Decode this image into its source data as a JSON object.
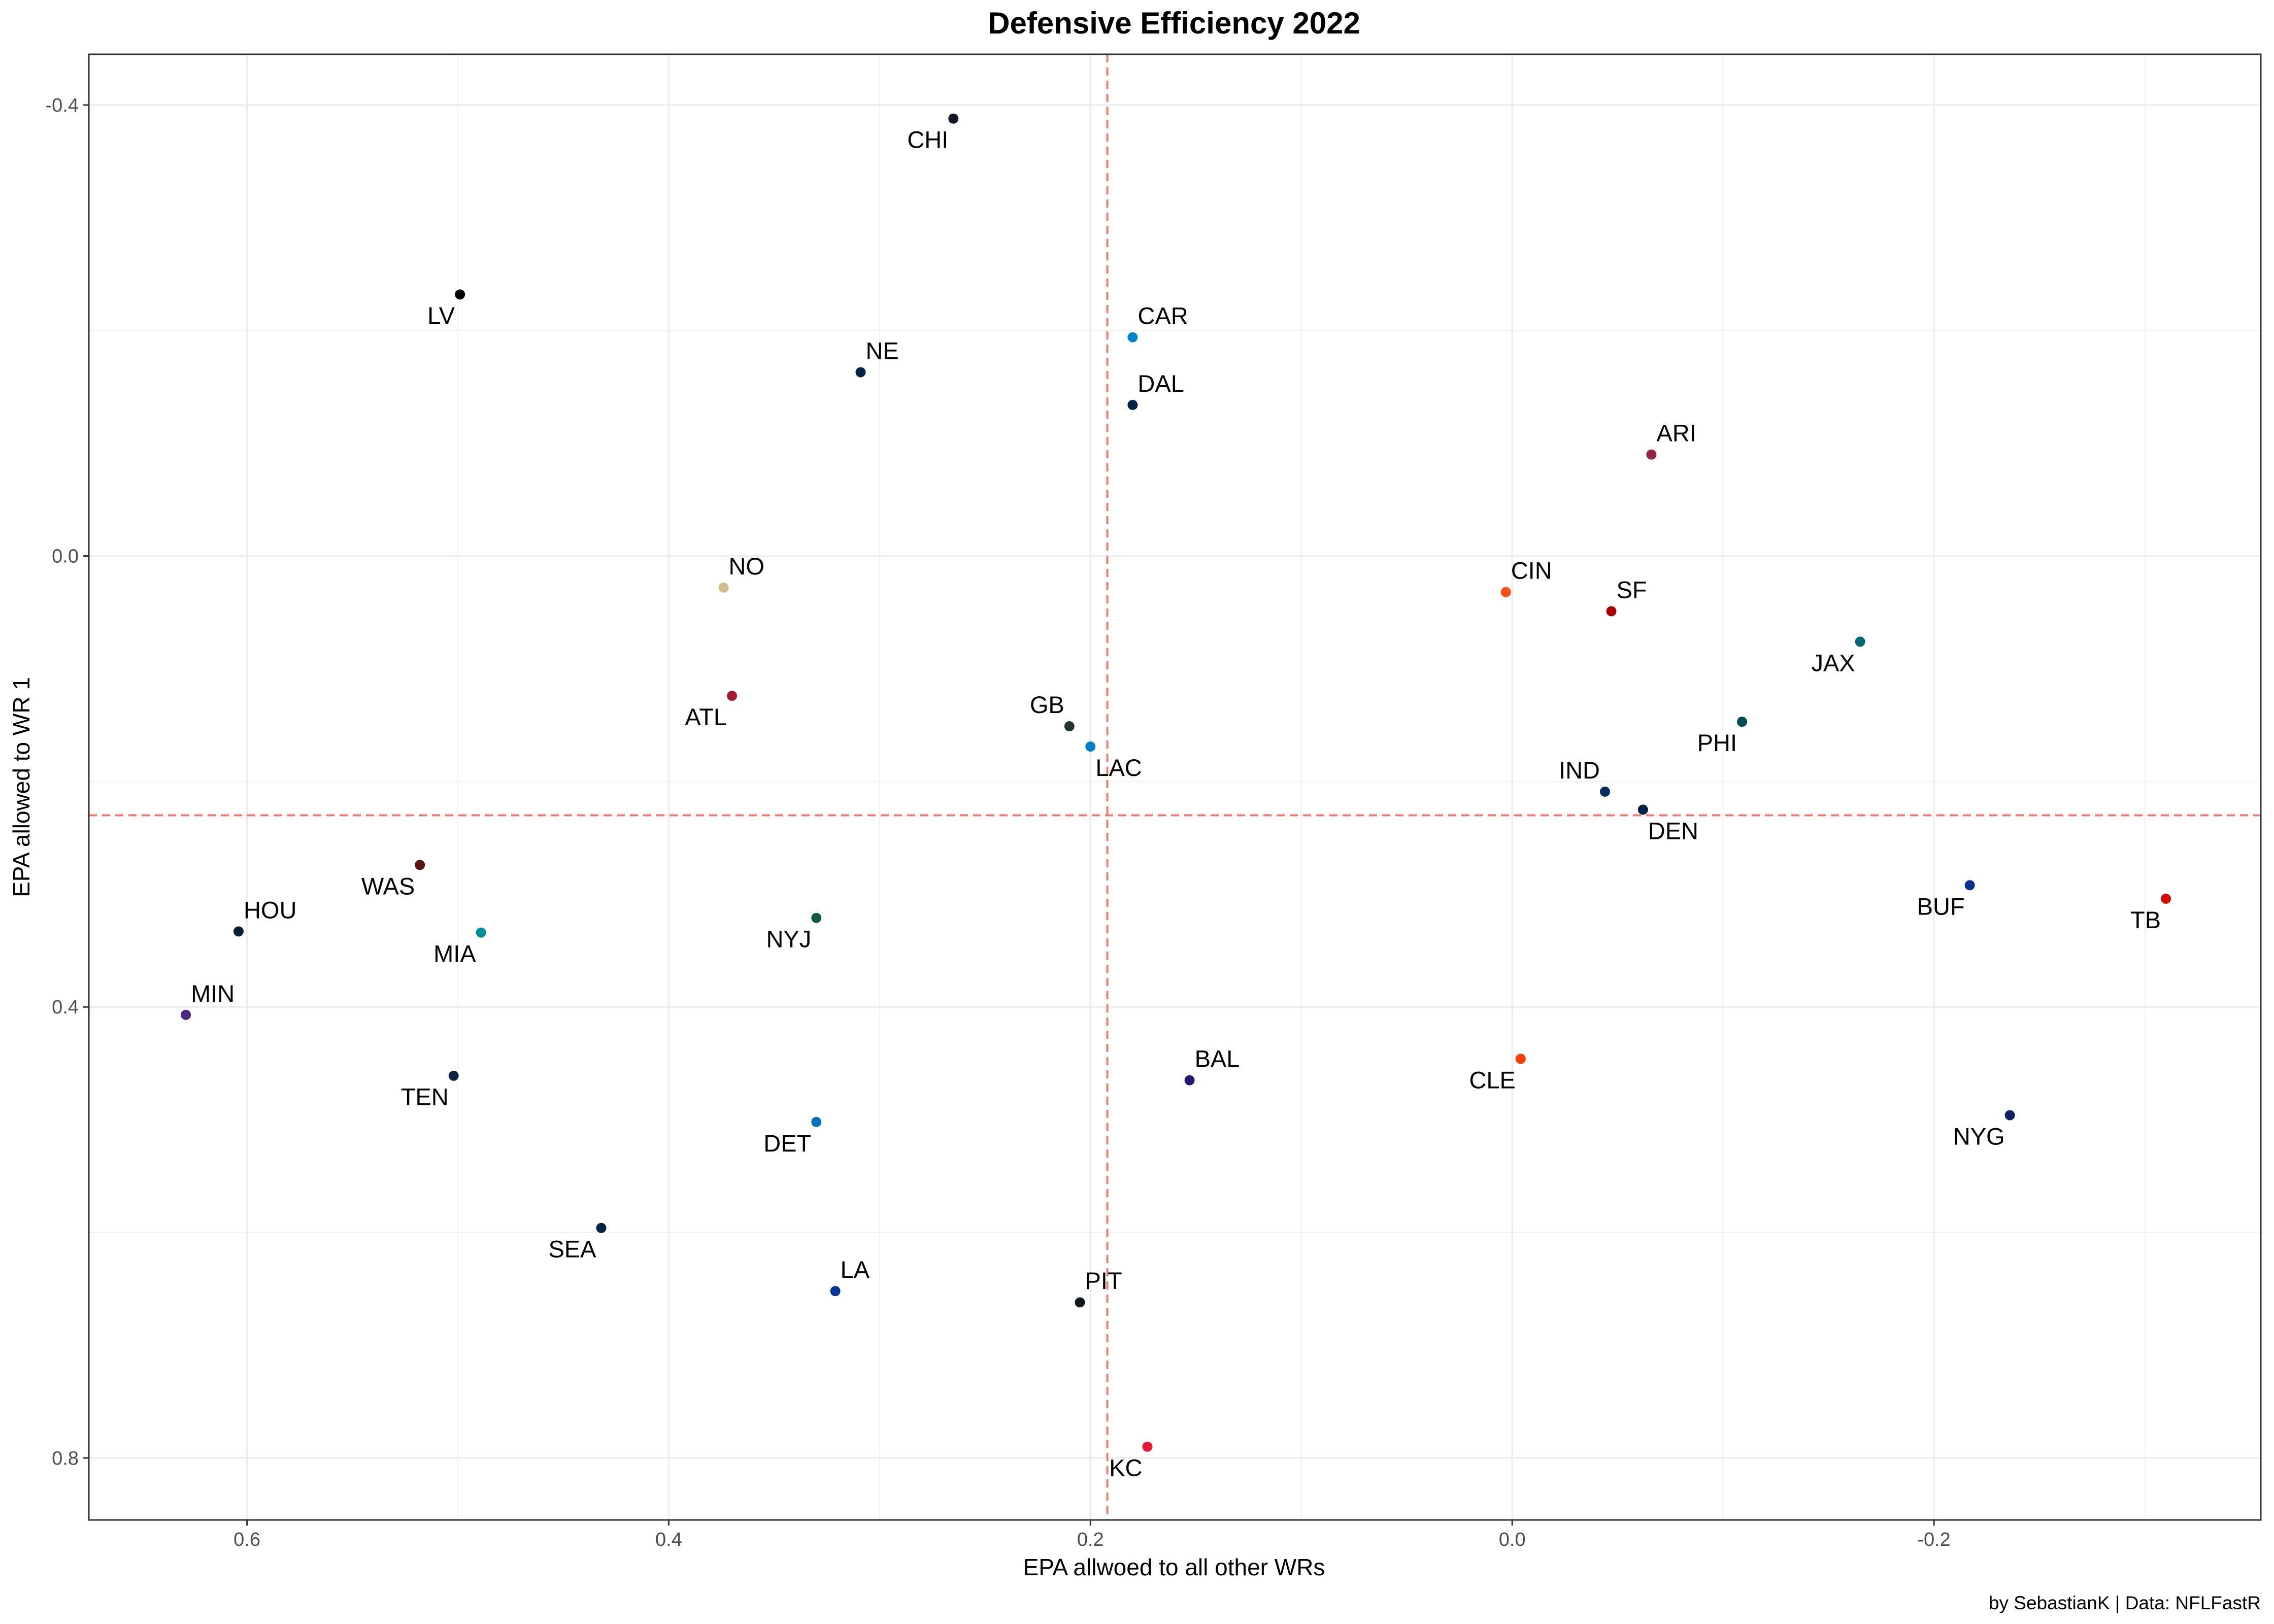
{
  "chart_data": {
    "type": "scatter",
    "title": "Defensive Efficiency 2022",
    "xlabel": "EPA allwoed to all other WRs",
    "ylabel": "EPA allowed to WR 1",
    "caption": "by SebastianK | Data: NFLFastR",
    "x_reversed": true,
    "y_reversed": true,
    "xlim": [
      0.675,
      -0.355
    ],
    "ylim": [
      -0.445,
      0.855
    ],
    "x_ticks": [
      0.6,
      0.4,
      0.2,
      0.0,
      -0.2
    ],
    "x_tick_labels": [
      "0.6",
      "0.4",
      "0.2",
      "0.0",
      "-0.2"
    ],
    "y_ticks": [
      -0.4,
      0.0,
      0.4,
      0.8
    ],
    "y_tick_labels": [
      "-0.4",
      "0.0",
      "0.4",
      "0.8"
    ],
    "grid": true,
    "reference_lines": {
      "vertical_x": 0.192,
      "horizontal_y": 0.23,
      "color": "#F8766D",
      "style": "dashed"
    },
    "points": [
      {
        "team": "CHI",
        "x": 0.265,
        "y": -0.388,
        "color": "#0B162A",
        "label_pos": "bl"
      },
      {
        "team": "LV",
        "x": 0.499,
        "y": -0.232,
        "color": "#000000",
        "label_pos": "bl"
      },
      {
        "team": "CAR",
        "x": 0.18,
        "y": -0.194,
        "color": "#0085CA",
        "label_pos": "tr"
      },
      {
        "team": "NE",
        "x": 0.309,
        "y": -0.163,
        "color": "#002244",
        "label_pos": "tr"
      },
      {
        "team": "DAL",
        "x": 0.18,
        "y": -0.134,
        "color": "#002244",
        "label_pos": "tr"
      },
      {
        "team": "ARI",
        "x": -0.066,
        "y": -0.09,
        "color": "#97233F",
        "label_pos": "tr"
      },
      {
        "team": "NO",
        "x": 0.374,
        "y": 0.028,
        "color": "#D3BC8D",
        "label_pos": "tr"
      },
      {
        "team": "CIN",
        "x": 0.003,
        "y": 0.032,
        "color": "#FB4F14",
        "label_pos": "tr"
      },
      {
        "team": "SF",
        "x": -0.047,
        "y": 0.049,
        "color": "#AA0000",
        "label_pos": "tr"
      },
      {
        "team": "JAX",
        "x": -0.165,
        "y": 0.076,
        "color": "#006778",
        "label_pos": "bl"
      },
      {
        "team": "ATL",
        "x": 0.37,
        "y": 0.124,
        "color": "#A71930",
        "label_pos": "bl"
      },
      {
        "team": "PHI",
        "x": -0.109,
        "y": 0.147,
        "color": "#004C54",
        "label_pos": "bl"
      },
      {
        "team": "GB",
        "x": 0.21,
        "y": 0.151,
        "color": "#203731",
        "label_pos": "tl"
      },
      {
        "team": "LAC",
        "x": 0.2,
        "y": 0.169,
        "color": "#0080C6",
        "label_pos": "br"
      },
      {
        "team": "IND",
        "x": -0.044,
        "y": 0.209,
        "color": "#002C5F",
        "label_pos": "tl"
      },
      {
        "team": "DEN",
        "x": -0.062,
        "y": 0.225,
        "color": "#002244",
        "label_pos": "br"
      },
      {
        "team": "WAS",
        "x": 0.518,
        "y": 0.274,
        "color": "#5A1414",
        "label_pos": "bl"
      },
      {
        "team": "BUF",
        "x": -0.217,
        "y": 0.292,
        "color": "#00338D",
        "label_pos": "bl"
      },
      {
        "team": "TB",
        "x": -0.31,
        "y": 0.304,
        "color": "#D50A0A",
        "label_pos": "bl"
      },
      {
        "team": "NYJ",
        "x": 0.33,
        "y": 0.321,
        "color": "#125740",
        "label_pos": "bl"
      },
      {
        "team": "HOU",
        "x": 0.604,
        "y": 0.333,
        "color": "#03202F",
        "label_pos": "tr"
      },
      {
        "team": "MIA",
        "x": 0.489,
        "y": 0.334,
        "color": "#008E97",
        "label_pos": "bl"
      },
      {
        "team": "MIN",
        "x": 0.629,
        "y": 0.407,
        "color": "#4F2683",
        "label_pos": "tr"
      },
      {
        "team": "CLE",
        "x": -0.004,
        "y": 0.446,
        "color": "#FF3C00",
        "label_pos": "bl"
      },
      {
        "team": "TEN",
        "x": 0.502,
        "y": 0.461,
        "color": "#0C2340",
        "label_pos": "bl"
      },
      {
        "team": "BAL",
        "x": 0.153,
        "y": 0.465,
        "color": "#241773",
        "label_pos": "tr"
      },
      {
        "team": "NYG",
        "x": -0.236,
        "y": 0.496,
        "color": "#0B2265",
        "label_pos": "bl"
      },
      {
        "team": "DET",
        "x": 0.33,
        "y": 0.502,
        "color": "#0076B6",
        "label_pos": "bl"
      },
      {
        "team": "SEA",
        "x": 0.432,
        "y": 0.596,
        "color": "#002244",
        "label_pos": "bl"
      },
      {
        "team": "LA",
        "x": 0.321,
        "y": 0.652,
        "color": "#003594",
        "label_pos": "tr"
      },
      {
        "team": "PIT",
        "x": 0.205,
        "y": 0.662,
        "color": "#101820",
        "label_pos": "tr"
      },
      {
        "team": "KC",
        "x": 0.173,
        "y": 0.79,
        "color": "#E31837",
        "label_pos": "bl"
      }
    ]
  }
}
